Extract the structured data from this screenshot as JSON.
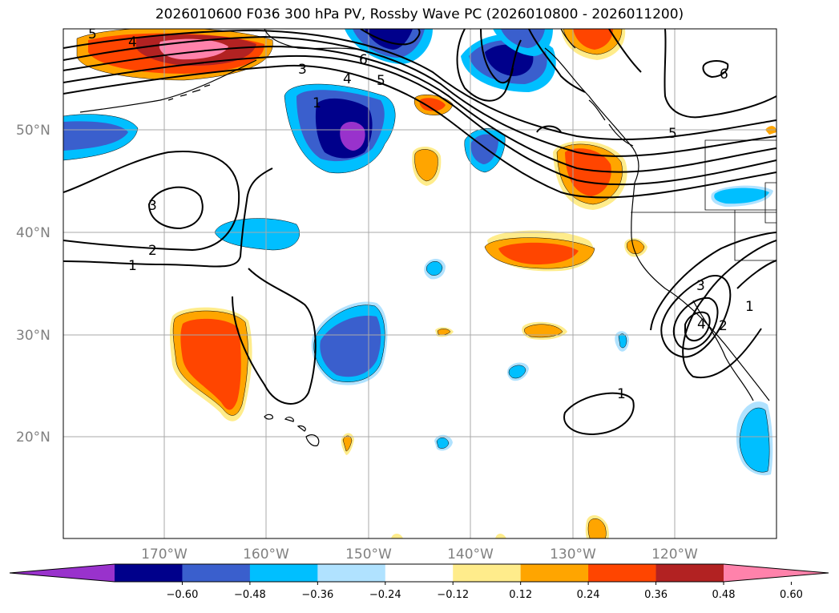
{
  "title": "2026010600 F036 300 hPa PV, Rossby Wave PC (2026010800 - 2026011200)",
  "lat_labels": [
    "50°N",
    "40°N",
    "30°N",
    "20°N"
  ],
  "lon_labels": [
    "170°W",
    "160°W",
    "150°W",
    "140°W",
    "130°W",
    "120°W"
  ],
  "contour_labels": [
    "5",
    "4",
    "3",
    "6",
    "4",
    "5",
    "1",
    "3",
    "2",
    "1",
    "5",
    "6",
    "3",
    "1",
    "2",
    "4",
    "1"
  ],
  "colorbar": {
    "ticks": [
      "−0.60",
      "−0.48",
      "−0.36",
      "−0.24",
      "−0.12",
      "0.12",
      "0.24",
      "0.36",
      "0.48",
      "0.60"
    ],
    "colors": [
      "#9932cc",
      "#00008b",
      "#3a5fcd",
      "#00bfff",
      "#b0e2ff",
      "#ffffff",
      "#ffec8b",
      "#ffa500",
      "#ff4500",
      "#b22222",
      "#ff82ab"
    ]
  }
}
